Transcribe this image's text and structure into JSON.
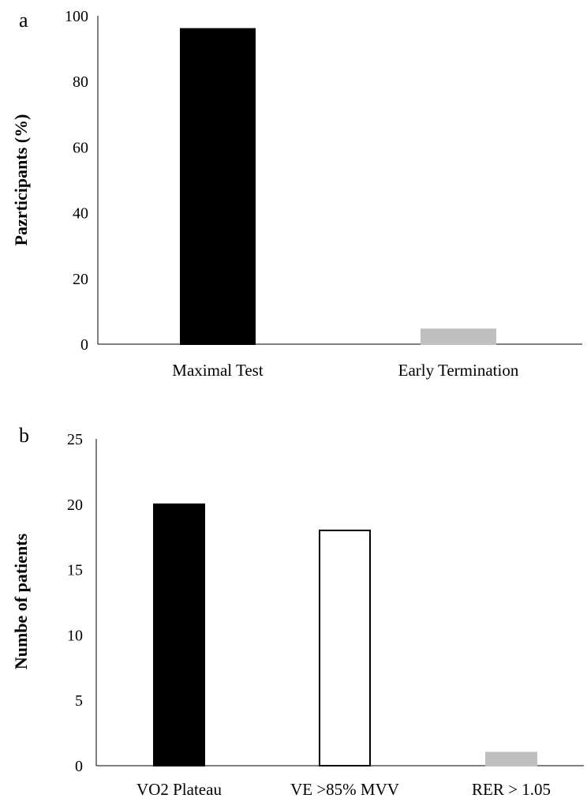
{
  "chart_data": [
    {
      "type": "bar",
      "panel": "a",
      "title": "",
      "xlabel": "",
      "ylabel": "Pazrticipants (%)",
      "ylim": [
        0,
        100
      ],
      "yticks": [
        0,
        20,
        40,
        60,
        80,
        100
      ],
      "grid": false,
      "categories": [
        "Maximal Test",
        "Early Termination"
      ],
      "values": [
        96,
        4.5
      ],
      "bar_colors": [
        "#000000",
        "#bfbfbf"
      ],
      "bar_outlines": [
        "#000000",
        "#bfbfbf"
      ]
    },
    {
      "type": "bar",
      "panel": "b",
      "title": "",
      "xlabel": "",
      "ylabel": "Numbe of patients",
      "ylim": [
        0,
        25
      ],
      "yticks": [
        0,
        5,
        10,
        15,
        20,
        25
      ],
      "grid": false,
      "categories": [
        "VO2 Plateau",
        "VE >85% MVV",
        "RER > 1.05"
      ],
      "values": [
        20,
        18,
        1
      ],
      "bar_colors": [
        "#000000",
        "#ffffff",
        "#bfbfbf"
      ],
      "bar_outlines": [
        "#000000",
        "#000000",
        "#bfbfbf"
      ]
    }
  ]
}
